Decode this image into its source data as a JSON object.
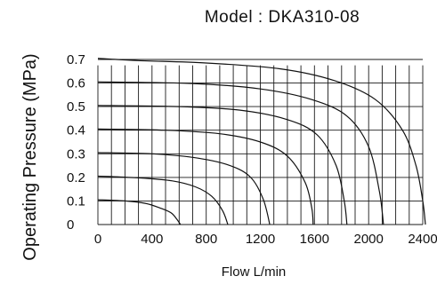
{
  "chart_data": {
    "type": "line",
    "title": "Model : DKA310-08",
    "xlabel": "Flow L/min",
    "ylabel": "Operating Pressure (MPa)",
    "xlim": [
      0,
      2400
    ],
    "ylim": [
      0,
      0.7
    ],
    "x_ticks": [
      "0",
      "400",
      "800",
      "1200",
      "1600",
      "2000",
      "2400"
    ],
    "y_ticks": [
      "0",
      "0.1",
      "0.2",
      "0.3",
      "0.4",
      "0.5",
      "0.6",
      "0.7"
    ],
    "grid": true,
    "legend": "none",
    "series": [
      {
        "set_pressure": 0.1,
        "x": [
          0,
          200,
          350,
          460,
          540,
          580,
          610
        ],
        "y": [
          0.105,
          0.1,
          0.09,
          0.07,
          0.05,
          0.025,
          0
        ]
      },
      {
        "set_pressure": 0.2,
        "x": [
          0,
          300,
          550,
          720,
          840,
          920,
          960
        ],
        "y": [
          0.205,
          0.198,
          0.185,
          0.16,
          0.12,
          0.06,
          0
        ]
      },
      {
        "set_pressure": 0.3,
        "x": [
          0,
          400,
          700,
          950,
          1120,
          1220,
          1270
        ],
        "y": [
          0.305,
          0.3,
          0.285,
          0.255,
          0.205,
          0.11,
          0
        ]
      },
      {
        "set_pressure": 0.4,
        "x": [
          0,
          500,
          900,
          1200,
          1400,
          1530,
          1580,
          1590
        ],
        "y": [
          0.405,
          0.4,
          0.385,
          0.35,
          0.29,
          0.18,
          0.07,
          0
        ]
      },
      {
        "set_pressure": 0.5,
        "x": [
          0,
          600,
          1050,
          1400,
          1620,
          1760,
          1820,
          1840
        ],
        "y": [
          0.505,
          0.5,
          0.485,
          0.445,
          0.38,
          0.25,
          0.1,
          0
        ]
      },
      {
        "set_pressure": 0.6,
        "x": [
          0,
          700,
          1200,
          1580,
          1840,
          2000,
          2080,
          2110
        ],
        "y": [
          0.605,
          0.598,
          0.575,
          0.53,
          0.46,
          0.33,
          0.14,
          0
        ]
      },
      {
        "set_pressure": 0.7,
        "x": [
          0,
          300,
          800,
          1350,
          1750,
          2050,
          2250,
          2350,
          2400,
          2420
        ],
        "y": [
          0.705,
          0.695,
          0.685,
          0.66,
          0.61,
          0.53,
          0.4,
          0.25,
          0.1,
          0
        ]
      }
    ]
  }
}
